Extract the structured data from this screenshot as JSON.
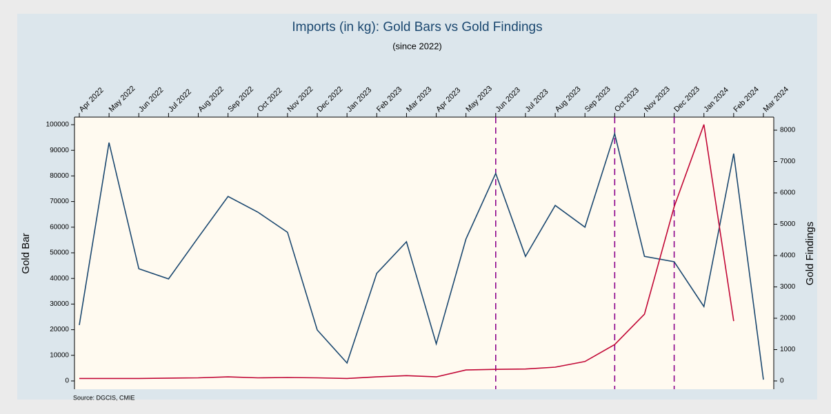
{
  "chart_data": {
    "type": "line",
    "title": "Imports (in kg): Gold Bars vs Gold Findings",
    "subtitle": "(since 2022)",
    "y_label": "Gold Bar",
    "y2_label": "Gold Findings",
    "note": "Source: DGCIS, CMIE",
    "categories": [
      "Apr 2022",
      "May 2022",
      "Jun 2022",
      "Jul 2022",
      "Aug 2022",
      "Sep 2022",
      "Oct 2022",
      "Nov 2022",
      "Dec 2022",
      "Jan 2023",
      "Feb 2023",
      "Mar 2023",
      "Apr 2023",
      "May 2023",
      "Jun 2023",
      "Jul 2023",
      "Aug 2023",
      "Sep 2023",
      "Oct 2023",
      "Nov 2023",
      "Dec 2023",
      "Jan 2024",
      "Feb 2024",
      "Mar 2024"
    ],
    "series": [
      {
        "name": "Gold Bar",
        "color": "#1a476f",
        "values": [
          21800,
          93000,
          43800,
          39800,
          56000,
          72000,
          65900,
          58000,
          19900,
          7000,
          42000,
          54300,
          14500,
          55400,
          81000,
          48600,
          68500,
          60000,
          96500,
          48600,
          46500,
          29000,
          88700,
          500
        ]
      },
      {
        "name": "Gold Findings",
        "color": "#c10534",
        "axis": "y2",
        "values": [
          80,
          80,
          80,
          90,
          100,
          130,
          100,
          110,
          100,
          80,
          130,
          170,
          130,
          350,
          370,
          380,
          440,
          620,
          1160,
          2130,
          5560,
          8180,
          1910,
          null
        ]
      }
    ],
    "vlines": [
      "Jun 2023",
      "Oct 2023",
      "Dec 2023"
    ],
    "vline_color": "#8b008b",
    "ylim": [
      0,
      100000
    ],
    "yticks": [
      0,
      10000,
      20000,
      30000,
      40000,
      50000,
      60000,
      70000,
      80000,
      90000,
      100000
    ],
    "y2lim": [
      0,
      8000
    ],
    "y2ticks": [
      0,
      1000,
      2000,
      3000,
      4000,
      5000,
      6000,
      7000,
      8000
    ]
  }
}
